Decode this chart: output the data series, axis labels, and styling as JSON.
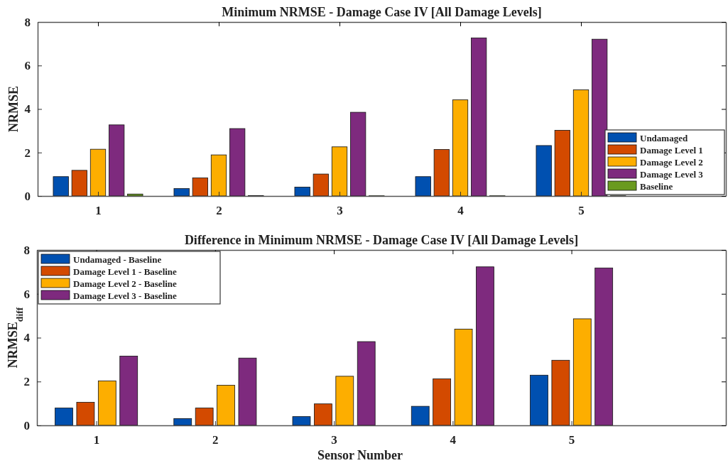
{
  "chart_data": [
    {
      "type": "bar",
      "title": "Minimum NRMSE - Damage Case IV [All Damage Levels]",
      "ylabel": "NRMSE",
      "x": [
        1,
        2,
        3,
        4,
        5
      ],
      "xlim": [
        0.5,
        6.2
      ],
      "xticks": [
        1,
        2,
        3,
        4,
        5
      ],
      "ylim": [
        0,
        8
      ],
      "yticks": [
        0,
        2,
        4,
        6,
        8
      ],
      "grid": false,
      "legend": "bottom right",
      "series": [
        {
          "name": "Undamaged",
          "color": "#0050b0",
          "values": [
            0.89,
            0.34,
            0.41,
            0.89,
            2.32
          ]
        },
        {
          "name": "Damage Level 1",
          "color": "#d34a00",
          "values": [
            1.18,
            0.83,
            1.01,
            2.14,
            3.02
          ]
        },
        {
          "name": "Damage Level 2",
          "color": "#fdae00",
          "values": [
            2.15,
            1.89,
            2.26,
            4.42,
            4.88
          ]
        },
        {
          "name": "Damage Level 3",
          "color": "#7e2a7e",
          "values": [
            3.27,
            3.1,
            3.85,
            7.27,
            7.21
          ]
        },
        {
          "name": "Baseline",
          "color": "#6a9a20",
          "values": [
            0.09,
            0.02,
            0.01,
            0.01,
            0.01
          ]
        }
      ]
    },
    {
      "type": "bar",
      "title": "Difference in Minimum NRMSE - Damage Case IV [All Damage Levels]",
      "xlabel": "Sensor Number",
      "ylabel": "NRMSE$_{diff}$",
      "x": [
        1,
        2,
        3,
        4,
        5
      ],
      "xlim": [
        0.5,
        6.3
      ],
      "xticks": [
        1,
        2,
        3,
        4,
        5
      ],
      "ylim": [
        0,
        8
      ],
      "yticks": [
        0,
        2,
        4,
        6,
        8
      ],
      "grid": false,
      "legend": "top left",
      "series": [
        {
          "name": "Undamaged - Baseline",
          "color": "#0050b0",
          "values": [
            0.79,
            0.31,
            0.4,
            0.87,
            2.29
          ]
        },
        {
          "name": "Damage Level 1 - Baseline",
          "color": "#d34a00",
          "values": [
            1.05,
            0.79,
            0.98,
            2.12,
            2.97
          ]
        },
        {
          "name": "Damage Level 2 - Baseline",
          "color": "#fdae00",
          "values": [
            2.03,
            1.83,
            2.24,
            4.39,
            4.86
          ]
        },
        {
          "name": "Damage Level 3 - Baseline",
          "color": "#7e2a7e",
          "values": [
            3.16,
            3.07,
            3.82,
            7.23,
            7.18
          ]
        }
      ]
    }
  ]
}
